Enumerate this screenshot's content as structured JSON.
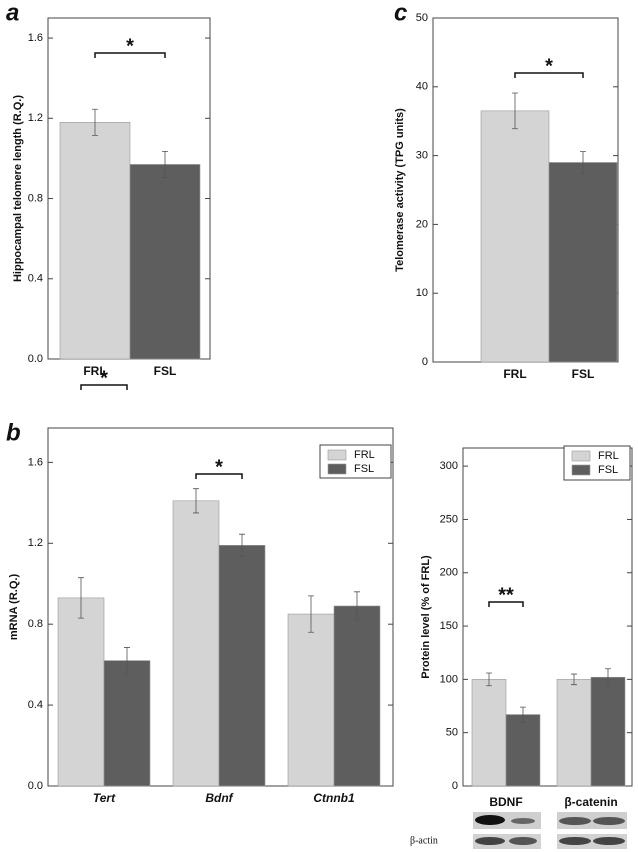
{
  "chart_data": [
    {
      "type": "bar",
      "panel": "a",
      "ylabel": "Hippocampal telomere length (R.Q.)",
      "categories": [
        "FRL",
        "FSL"
      ],
      "values": [
        1.18,
        0.97
      ],
      "errors": [
        0.065,
        0.065
      ],
      "colors": [
        "#d4d4d4",
        "#5e5e5e"
      ],
      "ylim": [
        0,
        1.7
      ],
      "yticks": [
        {
          "value": 0,
          "label": "0.0"
        },
        {
          "value": 0.4,
          "label": "0.4"
        },
        {
          "value": 0.8,
          "label": "0.8"
        },
        {
          "value": 1.2,
          "label": "1.2"
        },
        {
          "value": 1.6,
          "label": "1.6"
        }
      ],
      "annotations": [
        "*"
      ]
    },
    {
      "type": "bar",
      "panel": "c",
      "ylabel": "Telomerase activity (TPG units)",
      "categories": [
        "FRL",
        "FSL"
      ],
      "values": [
        36.5,
        29
      ],
      "errors": [
        2.6,
        1.6
      ],
      "colors": [
        "#d4d4d4",
        "#5e5e5e"
      ],
      "ylim": [
        0,
        50
      ],
      "yticks": [
        0,
        10,
        20,
        30,
        40,
        50
      ],
      "annotations": [
        "*"
      ]
    },
    {
      "type": "bar",
      "panel": "b",
      "ylabel": "mRNA (R.Q.)",
      "categories": [
        "Tert",
        "Bdnf",
        "Ctnnb1"
      ],
      "series": [
        {
          "name": "FRL",
          "color": "#d4d4d4",
          "values": [
            0.93,
            1.41,
            0.85
          ],
          "errors": [
            0.1,
            0.06,
            0.09
          ]
        },
        {
          "name": "FSL",
          "color": "#5e5e5e",
          "values": [
            0.62,
            1.19,
            0.89
          ],
          "errors": [
            0.065,
            0.055,
            0.07
          ]
        }
      ],
      "ylim": [
        0,
        1.77
      ],
      "yticks": [
        {
          "value": 0,
          "label": "0.0"
        },
        {
          "value": 0.4,
          "label": "0.4"
        },
        {
          "value": 0.8,
          "label": "0.8"
        },
        {
          "value": 1.2,
          "label": "1.2"
        },
        {
          "value": 1.6,
          "label": "1.6"
        }
      ],
      "legend": "upper right",
      "annotations": [
        "*",
        "*"
      ]
    },
    {
      "type": "bar",
      "ylabel": "Protein level (% of FRL)",
      "categories": [
        "BDNF",
        "β-catenin"
      ],
      "series": [
        {
          "name": "FRL",
          "color": "#d4d4d4",
          "values": [
            100,
            100
          ],
          "errors": [
            6,
            5
          ]
        },
        {
          "name": "FSL",
          "color": "#5e5e5e",
          "values": [
            67,
            102
          ],
          "errors": [
            7,
            8
          ]
        }
      ],
      "ylim": [
        0,
        317
      ],
      "yticks": [
        0,
        50,
        100,
        150,
        200,
        250,
        300
      ],
      "legend": "upper right",
      "annotations": [
        "**"
      ],
      "loading_control": "β-actin"
    }
  ]
}
